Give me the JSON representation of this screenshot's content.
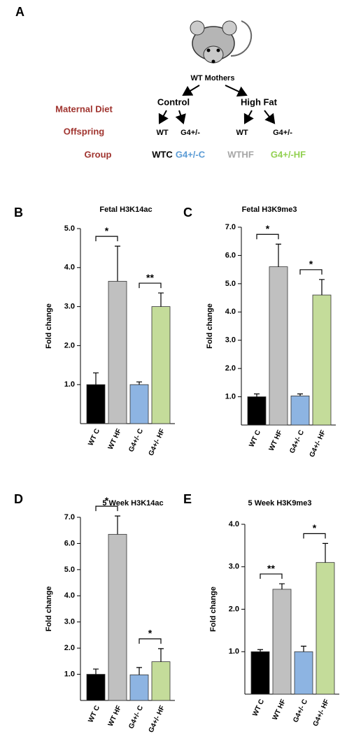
{
  "diagram": {
    "panel": "A",
    "root": "WT Mothers",
    "row_labels": {
      "diet": "Maternal Diet",
      "offspring": "Offspring",
      "group": "Group"
    },
    "diets": [
      "Control",
      "High Fat"
    ],
    "offspring": [
      "WT",
      "G4+/-",
      "WT",
      "G4+/-"
    ],
    "groups": [
      "WTC",
      "G4+/-C",
      "WTHF",
      "G4+/-HF"
    ]
  },
  "chart_data": [
    {
      "type": "bar",
      "panel": "B",
      "title": "Fetal H3K14ac",
      "ylabel": "Fold change",
      "categories": [
        "WT C",
        "WT HF",
        "G4+/- C",
        "G4+/- HF"
      ],
      "values": [
        1.0,
        3.65,
        1.0,
        3.0
      ],
      "errors": [
        0.3,
        0.9,
        0.07,
        0.35
      ],
      "colors": [
        "#000000",
        "#c0c0c0",
        "#8db4e2",
        "#c4dc9a"
      ],
      "ylim": [
        0,
        5
      ],
      "yticks": [
        {
          "value": 1,
          "label": "1.0"
        },
        {
          "value": 2,
          "label": "2.0"
        },
        {
          "value": 3,
          "label": "3.0"
        },
        {
          "value": 4,
          "label": "4.0"
        },
        {
          "value": 5,
          "label": "5.0"
        }
      ],
      "significance": [
        {
          "text": "*",
          "pair": [
            "WT C",
            "WT HF"
          ]
        },
        {
          "text": "**",
          "pair": [
            "G4+/- C",
            "G4+/- HF"
          ]
        }
      ]
    },
    {
      "type": "bar",
      "panel": "C",
      "title": "Fetal H3K9me3",
      "ylabel": "Fold change",
      "categories": [
        "WT C",
        "WT HF",
        "G4+/- C",
        "G4+/- HF"
      ],
      "values": [
        1.0,
        5.6,
        1.03,
        4.6
      ],
      "errors": [
        0.1,
        0.8,
        0.07,
        0.55
      ],
      "colors": [
        "#000000",
        "#c0c0c0",
        "#8db4e2",
        "#c4dc9a"
      ],
      "ylim": [
        0,
        7
      ],
      "yticks": [
        {
          "value": 1,
          "label": "1.0"
        },
        {
          "value": 2,
          "label": "2.0"
        },
        {
          "value": 3,
          "label": "3.0"
        },
        {
          "value": 4,
          "label": "4.0"
        },
        {
          "value": 5,
          "label": "5.0"
        },
        {
          "value": 6,
          "label": "6.0"
        },
        {
          "value": 7,
          "label": "7.0"
        }
      ],
      "significance": [
        {
          "text": "*",
          "pair": [
            "WT C",
            "WT HF"
          ]
        },
        {
          "text": "*",
          "pair": [
            "G4+/- C",
            "G4+/- HF"
          ]
        }
      ]
    },
    {
      "type": "bar",
      "panel": "D",
      "title": "5 Week H3K14ac",
      "ylabel": "Fold change",
      "categories": [
        "WT C",
        "WT HF",
        "G4+/- C",
        "G4+/- HF"
      ],
      "values": [
        1.0,
        6.35,
        0.98,
        1.48
      ],
      "errors": [
        0.2,
        0.7,
        0.28,
        0.5
      ],
      "colors": [
        "#000000",
        "#c0c0c0",
        "#8db4e2",
        "#c4dc9a"
      ],
      "ylim": [
        0,
        7
      ],
      "yticks": [
        {
          "value": 1,
          "label": "1.0"
        },
        {
          "value": 2,
          "label": "2.0"
        },
        {
          "value": 3,
          "label": "3.0"
        },
        {
          "value": 4,
          "label": "4.0"
        },
        {
          "value": 5,
          "label": "5.0"
        },
        {
          "value": 6,
          "label": "6.0"
        },
        {
          "value": 7,
          "label": "7.0"
        }
      ],
      "significance": [
        {
          "text": "*",
          "pair": [
            "WT C",
            "WT HF"
          ]
        },
        {
          "text": "*",
          "pair": [
            "G4+/- C",
            "G4+/- HF"
          ]
        }
      ]
    },
    {
      "type": "bar",
      "panel": "E",
      "title": "5 Week H3K9me3",
      "ylabel": "Fold change",
      "categories": [
        "WT C",
        "WT HF",
        "G4+/- C",
        "G4+/- HF"
      ],
      "values": [
        1.0,
        2.47,
        1.0,
        3.1
      ],
      "errors": [
        0.05,
        0.13,
        0.13,
        0.45
      ],
      "colors": [
        "#000000",
        "#c0c0c0",
        "#8db4e2",
        "#c4dc9a"
      ],
      "ylim": [
        0,
        4
      ],
      "yticks": [
        {
          "value": 1,
          "label": "1.0"
        },
        {
          "value": 2,
          "label": "2.0"
        },
        {
          "value": 3,
          "label": "3.0"
        },
        {
          "value": 4,
          "label": "4.0"
        }
      ],
      "significance": [
        {
          "text": "**",
          "pair": [
            "WT C",
            "WT HF"
          ]
        },
        {
          "text": "*",
          "pair": [
            "G4+/- C",
            "G4+/- HF"
          ]
        }
      ]
    }
  ]
}
